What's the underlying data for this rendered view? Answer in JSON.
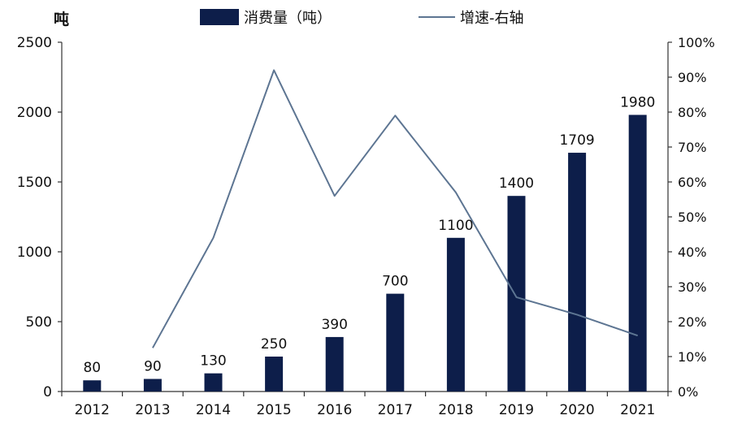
{
  "chart_data": {
    "type": "bar",
    "y_unit_label": "吨",
    "categories": [
      "2012",
      "2013",
      "2014",
      "2015",
      "2016",
      "2017",
      "2018",
      "2019",
      "2020",
      "2021"
    ],
    "series": [
      {
        "name": "消费量（吨）",
        "type": "bar",
        "axis": "left",
        "color": "#0d1e4a",
        "values": [
          80,
          90,
          130,
          250,
          390,
          700,
          1100,
          1400,
          1709,
          1980
        ],
        "data_labels": [
          "80",
          "90",
          "130",
          "250",
          "390",
          "700",
          "1100",
          "1400",
          "1709",
          "1980"
        ]
      },
      {
        "name": "增速-右轴",
        "type": "line",
        "axis": "right",
        "color": "#5d7592",
        "values": [
          null,
          12.5,
          44,
          92,
          56,
          79,
          57,
          27,
          22,
          16
        ]
      }
    ],
    "left_axis": {
      "ylim": [
        0,
        2500
      ],
      "ticks": [
        0,
        500,
        1000,
        1500,
        2000,
        2500
      ],
      "tick_labels": [
        "0",
        "500",
        "1000",
        "1500",
        "2000",
        "2500"
      ]
    },
    "right_axis": {
      "ylim": [
        0,
        100
      ],
      "ticks": [
        0,
        10,
        20,
        30,
        40,
        50,
        60,
        70,
        80,
        90,
        100
      ],
      "tick_labels": [
        "0%",
        "10%",
        "20%",
        "30%",
        "40%",
        "50%",
        "60%",
        "70%",
        "80%",
        "90%",
        "100%"
      ]
    },
    "legend": {
      "position": "top-center"
    },
    "grid": false
  }
}
